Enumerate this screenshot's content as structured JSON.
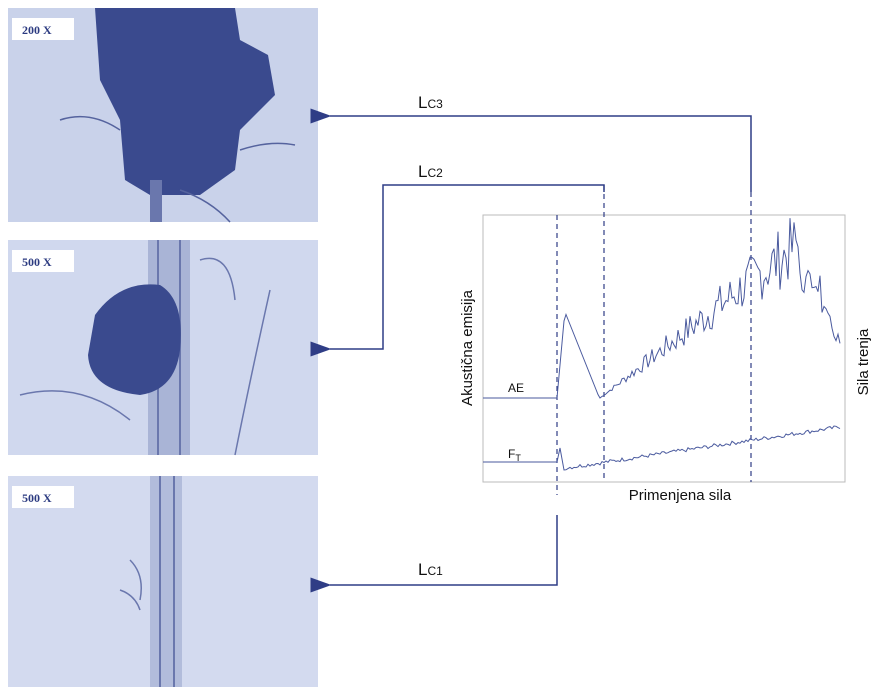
{
  "micrographs": [
    {
      "magnification": "200 X"
    },
    {
      "magnification": "500 X"
    },
    {
      "magnification": "500 X"
    }
  ],
  "critical_loads": [
    {
      "sub": "C1"
    },
    {
      "sub": "C2"
    },
    {
      "sub": "C3"
    }
  ],
  "chart": {
    "y_label": "Akustična emisija",
    "y2_label": "Sila trenja",
    "x_label": "Primenjena sila",
    "curve_ae": "AE",
    "curve_ft_sub": "T"
  }
}
